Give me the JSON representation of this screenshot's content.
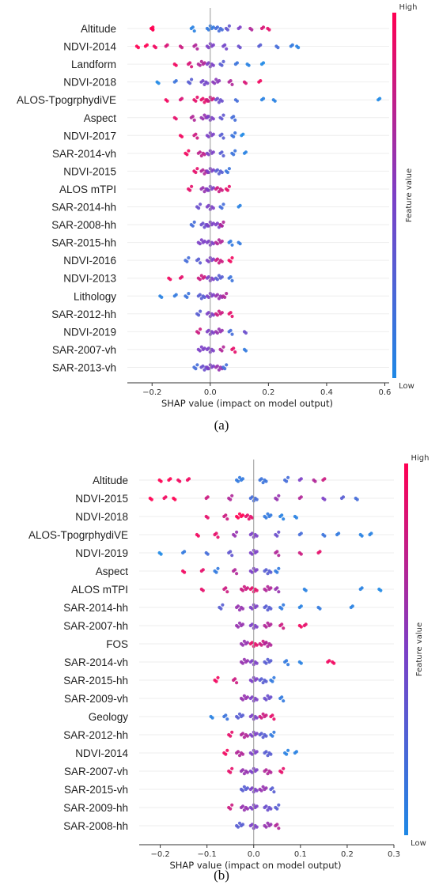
{
  "chart_data": [
    {
      "type": "scatter",
      "subtype": "beeswarm",
      "caption": "(a)",
      "xlabel": "SHAP value (impact on model output)",
      "xlim": [
        -0.285,
        0.615
      ],
      "xticks": [
        -0.2,
        0.0,
        0.2,
        0.4,
        0.6
      ],
      "xtick_labels": [
        "−0.2",
        "0.0",
        "0.2",
        "0.4",
        "0.6"
      ],
      "colorbar": {
        "label": "Feature value",
        "high": "High",
        "low": "Low"
      },
      "features": [
        "Altitude",
        "NDVI-2014",
        "Landform",
        "NDVI-2018",
        "ALOS-TpogrphydiVE",
        "Aspect",
        "NDVI-2017",
        "SAR-2014-vh",
        "NDVI-2015",
        "ALOS mTPI",
        "SAR-2014-hh",
        "SAR-2008-hh",
        "SAR-2015-hh",
        "NDVI-2016",
        "NDVI-2013",
        "Lithology",
        "SAR-2012-hh",
        "NDVI-2019",
        "SAR-2007-vh",
        "SAR-2013-vh"
      ],
      "points": [
        [
          [
            -0.2,
            1
          ],
          [
            -0.2,
            1
          ],
          [
            -0.2,
            1
          ],
          [
            -0.06,
            0.05
          ],
          [
            0.0,
            0.1
          ],
          [
            0.03,
            0.2
          ],
          [
            0.06,
            0.35
          ],
          [
            0.1,
            0.5
          ],
          [
            0.14,
            0.7
          ],
          [
            0.18,
            0.85
          ],
          [
            0.2,
            0.9
          ]
        ],
        [
          [
            -0.25,
            1
          ],
          [
            -0.22,
            1
          ],
          [
            -0.19,
            0.95
          ],
          [
            -0.15,
            0.85
          ],
          [
            -0.1,
            0.8
          ],
          [
            -0.05,
            0.7
          ],
          [
            0.0,
            0.5
          ],
          [
            0.05,
            0.45
          ],
          [
            0.1,
            0.4
          ],
          [
            0.17,
            0.3
          ],
          [
            0.23,
            0.2
          ],
          [
            0.28,
            0.1
          ],
          [
            0.3,
            0.05
          ]
        ],
        [
          [
            -0.12,
            0.95
          ],
          [
            -0.07,
            0.85
          ],
          [
            -0.03,
            0.7
          ],
          [
            0.0,
            0.5
          ],
          [
            0.04,
            0.3
          ],
          [
            0.09,
            0.15
          ],
          [
            0.13,
            0.05
          ],
          [
            0.18,
            0.0
          ]
        ],
        [
          [
            -0.18,
            0.0
          ],
          [
            -0.12,
            0.15
          ],
          [
            -0.07,
            0.3
          ],
          [
            -0.02,
            0.45
          ],
          [
            0.02,
            0.55
          ],
          [
            0.07,
            0.7
          ],
          [
            0.12,
            0.85
          ],
          [
            0.17,
            0.95
          ]
        ],
        [
          [
            -0.15,
            0.95
          ],
          [
            -0.1,
            0.85
          ],
          [
            -0.05,
            0.9
          ],
          [
            -0.02,
            0.9
          ],
          [
            0.0,
            0.8
          ],
          [
            0.03,
            0.4
          ],
          [
            0.09,
            0.2
          ],
          [
            0.18,
            0.05
          ],
          [
            0.22,
            0.05
          ],
          [
            0.58,
            0.0
          ]
        ],
        [
          [
            -0.12,
            0.9
          ],
          [
            -0.06,
            0.7
          ],
          [
            -0.02,
            0.6
          ],
          [
            0.0,
            0.5
          ],
          [
            0.04,
            0.35
          ],
          [
            0.08,
            0.2
          ]
        ],
        [
          [
            -0.1,
            0.95
          ],
          [
            -0.05,
            0.8
          ],
          [
            0.0,
            0.5
          ],
          [
            0.04,
            0.3
          ],
          [
            0.08,
            0.15
          ],
          [
            0.11,
            0.0
          ]
        ],
        [
          [
            -0.08,
            0.95
          ],
          [
            -0.03,
            0.75
          ],
          [
            0.0,
            0.5
          ],
          [
            0.04,
            0.3
          ],
          [
            0.08,
            0.15
          ],
          [
            0.12,
            0.05
          ]
        ],
        [
          [
            -0.05,
            0.9
          ],
          [
            -0.02,
            0.7
          ],
          [
            0.0,
            0.5
          ],
          [
            0.03,
            0.3
          ],
          [
            0.06,
            0.15
          ]
        ],
        [
          [
            -0.07,
            0.9
          ],
          [
            -0.02,
            0.6
          ],
          [
            0.0,
            0.5
          ],
          [
            0.03,
            0.8
          ],
          [
            0.06,
            0.9
          ]
        ],
        [
          [
            -0.04,
            0.4
          ],
          [
            0.0,
            0.5
          ],
          [
            0.04,
            0.2
          ],
          [
            0.1,
            0.05
          ]
        ],
        [
          [
            -0.06,
            0.2
          ],
          [
            -0.02,
            0.4
          ],
          [
            0.0,
            0.5
          ],
          [
            0.03,
            0.5
          ],
          [
            0.04,
            0.7
          ]
        ],
        [
          [
            -0.03,
            0.5
          ],
          [
            0.0,
            0.5
          ],
          [
            0.03,
            0.7
          ],
          [
            0.07,
            0.1
          ],
          [
            0.1,
            0.1
          ]
        ],
        [
          [
            -0.08,
            0.2
          ],
          [
            -0.04,
            0.3
          ],
          [
            0.0,
            0.5
          ],
          [
            0.03,
            0.8
          ],
          [
            0.07,
            0.95
          ]
        ],
        [
          [
            -0.14,
            0.95
          ],
          [
            -0.1,
            0.9
          ],
          [
            -0.03,
            0.8
          ],
          [
            0.0,
            0.5
          ],
          [
            0.03,
            0.3
          ],
          [
            0.07,
            0.15
          ]
        ],
        [
          [
            -0.17,
            0.05
          ],
          [
            -0.12,
            0.1
          ],
          [
            -0.08,
            0.15
          ],
          [
            -0.03,
            0.3
          ],
          [
            0.0,
            0.5
          ],
          [
            0.03,
            0.6
          ],
          [
            0.05,
            0.7
          ]
        ],
        [
          [
            -0.04,
            0.3
          ],
          [
            0.0,
            0.5
          ],
          [
            0.03,
            0.8
          ],
          [
            0.07,
            0.9
          ]
        ],
        [
          [
            -0.04,
            0.8
          ],
          [
            0.0,
            0.5
          ],
          [
            0.03,
            0.6
          ],
          [
            0.07,
            0.2
          ],
          [
            0.12,
            0.4
          ]
        ],
        [
          [
            -0.03,
            0.5
          ],
          [
            0.0,
            0.5
          ],
          [
            0.04,
            0.7
          ],
          [
            0.08,
            0.9
          ],
          [
            0.12,
            0.1
          ]
        ],
        [
          [
            -0.05,
            0.2
          ],
          [
            -0.02,
            0.4
          ],
          [
            0.0,
            0.5
          ],
          [
            0.03,
            0.6
          ],
          [
            0.05,
            0.2
          ]
        ]
      ]
    },
    {
      "type": "scatter",
      "subtype": "beeswarm",
      "caption": "(b)",
      "xlabel": "SHAP value (impact on model output)",
      "xlim": [
        -0.245,
        0.3
      ],
      "xticks": [
        -0.2,
        -0.1,
        0.0,
        0.1,
        0.2,
        0.3
      ],
      "xtick_labels": [
        "−0.2",
        "−0.1",
        "0.0",
        "0.1",
        "0.2",
        "0.3"
      ],
      "colorbar": {
        "label": "Feature value",
        "high": "High",
        "low": "Low"
      },
      "features": [
        "Altitude",
        "NDVI-2015",
        "NDVI-2018",
        "ALOS-TpogrphydiVE",
        "NDVI-2019",
        "Aspect",
        "ALOS mTPI",
        "SAR-2014-hh",
        "SAR-2007-hh",
        "FOS",
        "SAR-2014-vh",
        "SAR-2015-hh",
        "SAR-2009-vh",
        "Geology",
        "SAR-2012-hh",
        "NDVI-2014",
        "SAR-2007-vh",
        "SAR-2015-vh",
        "SAR-2009-hh",
        "SAR-2008-hh"
      ],
      "points": [
        [
          [
            -0.2,
            1
          ],
          [
            -0.18,
            1
          ],
          [
            -0.16,
            0.95
          ],
          [
            -0.14,
            0.95
          ],
          [
            -0.03,
            0.1
          ],
          [
            0.02,
            0.15
          ],
          [
            0.07,
            0.2
          ],
          [
            0.1,
            0.5
          ],
          [
            0.13,
            0.7
          ],
          [
            0.15,
            0.8
          ]
        ],
        [
          [
            -0.22,
            1
          ],
          [
            -0.19,
            0.95
          ],
          [
            -0.17,
            1
          ],
          [
            -0.1,
            0.8
          ],
          [
            -0.05,
            0.7
          ],
          [
            0.0,
            0.2
          ],
          [
            0.05,
            0.6
          ],
          [
            0.1,
            0.7
          ],
          [
            0.15,
            0.5
          ],
          [
            0.19,
            0.3
          ],
          [
            0.22,
            0.2
          ]
        ],
        [
          [
            -0.1,
            0.9
          ],
          [
            -0.06,
            0.8
          ],
          [
            -0.03,
            1
          ],
          [
            -0.01,
            0.9
          ],
          [
            0.03,
            0.1
          ],
          [
            0.06,
            0.05
          ],
          [
            0.09,
            0.05
          ]
        ],
        [
          [
            -0.12,
            0.95
          ],
          [
            -0.08,
            0.9
          ],
          [
            -0.04,
            0.6
          ],
          [
            0.0,
            0.5
          ],
          [
            0.05,
            0.4
          ],
          [
            0.1,
            0.2
          ],
          [
            0.15,
            0.15
          ],
          [
            0.18,
            0.1
          ],
          [
            0.23,
            0.05
          ],
          [
            0.25,
            0.05
          ]
        ],
        [
          [
            -0.2,
            0.0
          ],
          [
            -0.15,
            0.1
          ],
          [
            -0.1,
            0.2
          ],
          [
            -0.05,
            0.35
          ],
          [
            0.0,
            0.5
          ],
          [
            0.05,
            0.7
          ],
          [
            0.1,
            0.8
          ],
          [
            0.14,
            0.9
          ]
        ],
        [
          [
            -0.15,
            0.95
          ],
          [
            -0.11,
            0.9
          ],
          [
            -0.08,
            0.1
          ],
          [
            -0.04,
            0.7
          ],
          [
            0.0,
            0.5
          ],
          [
            0.03,
            0.3
          ],
          [
            0.05,
            0.1
          ]
        ],
        [
          [
            -0.11,
            0.9
          ],
          [
            -0.06,
            0.8
          ],
          [
            -0.02,
            0.8
          ],
          [
            0.0,
            0.9
          ],
          [
            0.03,
            0.7
          ],
          [
            0.05,
            0.6
          ],
          [
            0.11,
            0.05
          ],
          [
            0.23,
            0.05
          ],
          [
            0.27,
            0.0
          ]
        ],
        [
          [
            -0.07,
            0.3
          ],
          [
            -0.03,
            0.6
          ],
          [
            0.0,
            0.5
          ],
          [
            0.03,
            0.3
          ],
          [
            0.06,
            0.1
          ],
          [
            0.1,
            0.05
          ],
          [
            0.14,
            0.1
          ],
          [
            0.21,
            0.05
          ]
        ],
        [
          [
            -0.03,
            0.6
          ],
          [
            0.0,
            0.5
          ],
          [
            0.03,
            0.7
          ],
          [
            0.06,
            0.8
          ],
          [
            0.1,
            0.95
          ],
          [
            0.11,
            0.9
          ]
        ],
        [
          [
            -0.02,
            0.6
          ],
          [
            0.0,
            0.9
          ],
          [
            0.02,
            0.8
          ],
          [
            0.03,
            0.7
          ]
        ],
        [
          [
            -0.02,
            0.6
          ],
          [
            0.0,
            0.5
          ],
          [
            0.03,
            0.3
          ],
          [
            0.07,
            0.1
          ],
          [
            0.1,
            0.05
          ],
          [
            0.16,
            0.95
          ],
          [
            0.17,
            0.95
          ]
        ],
        [
          [
            -0.08,
            0.95
          ],
          [
            -0.04,
            0.8
          ],
          [
            0.0,
            0.5
          ],
          [
            0.02,
            0.3
          ],
          [
            0.04,
            0.1
          ]
        ],
        [
          [
            -0.02,
            0.6
          ],
          [
            0.0,
            0.5
          ],
          [
            0.03,
            0.4
          ],
          [
            0.06,
            0.1
          ]
        ],
        [
          [
            -0.09,
            0.05
          ],
          [
            -0.06,
            0.15
          ],
          [
            -0.03,
            0.3
          ],
          [
            0.0,
            0.5
          ],
          [
            0.02,
            0.8
          ],
          [
            0.04,
            0.9
          ]
        ],
        [
          [
            -0.05,
            0.9
          ],
          [
            -0.02,
            0.7
          ],
          [
            0.0,
            0.5
          ],
          [
            0.02,
            0.3
          ],
          [
            0.04,
            0.1
          ]
        ],
        [
          [
            -0.06,
            0.95
          ],
          [
            -0.03,
            0.7
          ],
          [
            0.0,
            0.5
          ],
          [
            0.03,
            0.3
          ],
          [
            0.07,
            0.05
          ],
          [
            0.09,
            0.05
          ]
        ],
        [
          [
            -0.05,
            0.9
          ],
          [
            -0.02,
            0.6
          ],
          [
            0.0,
            0.5
          ],
          [
            0.03,
            0.7
          ],
          [
            0.06,
            0.9
          ]
        ],
        [
          [
            -0.02,
            0.3
          ],
          [
            0.0,
            0.5
          ],
          [
            0.02,
            0.6
          ],
          [
            0.04,
            0.3
          ]
        ],
        [
          [
            -0.05,
            0.8
          ],
          [
            -0.02,
            0.6
          ],
          [
            0.0,
            0.5
          ],
          [
            0.03,
            0.4
          ],
          [
            0.05,
            0.3
          ]
        ],
        [
          [
            -0.03,
            0.3
          ],
          [
            0.0,
            0.5
          ],
          [
            0.03,
            0.6
          ],
          [
            0.05,
            0.7
          ]
        ]
      ]
    }
  ]
}
